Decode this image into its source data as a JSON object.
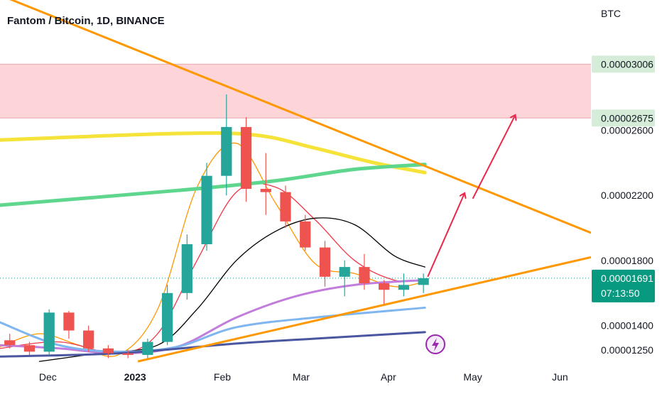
{
  "header": {
    "title": "Fantom / Bitcoin, 1D, BINANCE",
    "currency": "BTC"
  },
  "colors": {
    "up": "#26a69a",
    "down": "#ef5350",
    "ma_fast": "#ff9800",
    "ma_red": "#f23645",
    "ma_black": "#000000",
    "ma_purple": "#c27ddc",
    "ma_blue": "#7fb6f0",
    "ma_navy": "#4a57a0",
    "ma_yellow": "#f5e33a",
    "ma_green": "#5fd68e",
    "trendline": "#ff9800",
    "zone_fill": "#fdd5d8",
    "arrow": "#e8284c",
    "current_price": "#089981"
  },
  "chart_data": {
    "type": "candlestick",
    "title": "Fantom / Bitcoin, 1D, BINANCE",
    "ylabel": "BTC",
    "x_ticks": [
      "Dec",
      "2023",
      "Feb",
      "Mar",
      "Apr",
      "May",
      "Jun"
    ],
    "y_ticks": [
      "0.00002600",
      "0.00002200",
      "0.00001800",
      "0.00001400",
      "0.00001250"
    ],
    "price_labels": {
      "zone_top": "0.00003006",
      "zone_bottom": "0.00002675",
      "current": "0.00001691",
      "countdown": "07:13:50"
    },
    "x_range": [
      "2022-11-14",
      "2023-06-12"
    ],
    "y_range": [
      1.15e-05,
      3.4e-05
    ],
    "resistance_zone": [
      2.675e-05,
      3.006e-05
    ],
    "candles": [
      {
        "date": "2022-11-14",
        "o": 1.31e-05,
        "h": 1.35e-05,
        "l": 1.26e-05,
        "c": 1.28e-05
      },
      {
        "date": "2022-11-21",
        "o": 1.28e-05,
        "h": 1.3e-05,
        "l": 1.22e-05,
        "c": 1.24e-05
      },
      {
        "date": "2022-11-28",
        "o": 1.24e-05,
        "h": 1.5e-05,
        "l": 1.22e-05,
        "c": 1.48e-05
      },
      {
        "date": "2022-12-05",
        "o": 1.48e-05,
        "h": 1.49e-05,
        "l": 1.32e-05,
        "c": 1.37e-05
      },
      {
        "date": "2022-12-12",
        "o": 1.37e-05,
        "h": 1.4e-05,
        "l": 1.24e-05,
        "c": 1.26e-05
      },
      {
        "date": "2022-12-19",
        "o": 1.26e-05,
        "h": 1.28e-05,
        "l": 1.2e-05,
        "c": 1.23e-05
      },
      {
        "date": "2022-12-26",
        "o": 1.23e-05,
        "h": 1.25e-05,
        "l": 1.2e-05,
        "c": 1.22e-05
      },
      {
        "date": "2023-01-02",
        "o": 1.22e-05,
        "h": 1.32e-05,
        "l": 1.2e-05,
        "c": 1.3e-05
      },
      {
        "date": "2023-01-09",
        "o": 1.3e-05,
        "h": 1.65e-05,
        "l": 1.28e-05,
        "c": 1.6e-05
      },
      {
        "date": "2023-01-16",
        "o": 1.6e-05,
        "h": 1.96e-05,
        "l": 1.56e-05,
        "c": 1.9e-05
      },
      {
        "date": "2023-01-23",
        "o": 1.9e-05,
        "h": 2.4e-05,
        "l": 1.86e-05,
        "c": 2.32e-05
      },
      {
        "date": "2023-01-30",
        "o": 2.32e-05,
        "h": 2.82e-05,
        "l": 2.2e-05,
        "c": 2.62e-05
      },
      {
        "date": "2023-02-06",
        "o": 2.62e-05,
        "h": 2.68e-05,
        "l": 2.16e-05,
        "c": 2.24e-05
      },
      {
        "date": "2023-02-13",
        "o": 2.24e-05,
        "h": 2.46e-05,
        "l": 2.08e-05,
        "c": 2.22e-05
      },
      {
        "date": "2023-02-20",
        "o": 2.22e-05,
        "h": 2.26e-05,
        "l": 2e-05,
        "c": 2.04e-05
      },
      {
        "date": "2023-02-27",
        "o": 2.04e-05,
        "h": 2.08e-05,
        "l": 1.86e-05,
        "c": 1.88e-05
      },
      {
        "date": "2023-03-06",
        "o": 1.88e-05,
        "h": 1.92e-05,
        "l": 1.64e-05,
        "c": 1.7e-05
      },
      {
        "date": "2023-03-13",
        "o": 1.7e-05,
        "h": 1.8e-05,
        "l": 1.58e-05,
        "c": 1.76e-05
      },
      {
        "date": "2023-03-20",
        "o": 1.76e-05,
        "h": 1.84e-05,
        "l": 1.62e-05,
        "c": 1.66e-05
      },
      {
        "date": "2023-03-27",
        "o": 1.66e-05,
        "h": 1.68e-05,
        "l": 1.52e-05,
        "c": 1.62e-05
      },
      {
        "date": "2023-04-03",
        "o": 1.62e-05,
        "h": 1.72e-05,
        "l": 1.58e-05,
        "c": 1.65e-05
      },
      {
        "date": "2023-04-10",
        "o": 1.65e-05,
        "h": 1.72e-05,
        "l": 1.6e-05,
        "c": 1.691e-05
      }
    ],
    "moving_averages": [
      {
        "color": "#ff9800",
        "points": [
          [
            "2022-11-14",
            1.27e-05
          ],
          [
            "2022-11-28",
            1.35e-05
          ],
          [
            "2022-12-12",
            1.28e-05
          ],
          [
            "2022-12-26",
            1.22e-05
          ],
          [
            "2023-01-09",
            1.5e-05
          ],
          [
            "2023-01-23",
            2.25e-05
          ],
          [
            "2023-02-06",
            2.52e-05
          ],
          [
            "2023-02-20",
            2.15e-05
          ],
          [
            "2023-03-06",
            1.78e-05
          ],
          [
            "2023-03-20",
            1.72e-05
          ],
          [
            "2023-04-03",
            1.64e-05
          ],
          [
            "2023-04-14",
            1.67e-05
          ]
        ]
      },
      {
        "color": "#f23645",
        "points": [
          [
            "2022-11-14",
            1.26e-05
          ],
          [
            "2022-12-05",
            1.3e-05
          ],
          [
            "2022-12-26",
            1.23e-05
          ],
          [
            "2023-01-09",
            1.35e-05
          ],
          [
            "2023-01-23",
            1.8e-05
          ],
          [
            "2023-02-06",
            2.22e-05
          ],
          [
            "2023-02-20",
            2.25e-05
          ],
          [
            "2023-03-06",
            2.05e-05
          ],
          [
            "2023-03-20",
            1.8e-05
          ],
          [
            "2023-04-03",
            1.68e-05
          ],
          [
            "2023-04-14",
            1.68e-05
          ]
        ]
      },
      {
        "color": "#000000",
        "points": [
          [
            "2022-11-28",
            1.18e-05
          ],
          [
            "2022-12-19",
            1.23e-05
          ],
          [
            "2023-01-09",
            1.28e-05
          ],
          [
            "2023-01-23",
            1.5e-05
          ],
          [
            "2023-02-06",
            1.8e-05
          ],
          [
            "2023-02-20",
            1.98e-05
          ],
          [
            "2023-03-06",
            2.06e-05
          ],
          [
            "2023-03-20",
            2.02e-05
          ],
          [
            "2023-04-03",
            1.83e-05
          ],
          [
            "2023-04-14",
            1.76e-05
          ]
        ]
      },
      {
        "color": "#c27ddc",
        "points": [
          [
            "2022-11-14",
            1.28e-05
          ],
          [
            "2022-12-05",
            1.26e-05
          ],
          [
            "2022-12-26",
            1.23e-05
          ],
          [
            "2023-01-16",
            1.27e-05
          ],
          [
            "2023-02-06",
            1.45e-05
          ],
          [
            "2023-02-27",
            1.58e-05
          ],
          [
            "2023-03-20",
            1.65e-05
          ],
          [
            "2023-04-14",
            1.68e-05
          ]
        ]
      },
      {
        "color": "#7fb6f0",
        "points": [
          [
            "2022-11-14",
            1.42e-05
          ],
          [
            "2022-12-05",
            1.28e-05
          ],
          [
            "2022-12-26",
            1.24e-05
          ],
          [
            "2023-01-16",
            1.27e-05
          ],
          [
            "2023-02-06",
            1.39e-05
          ],
          [
            "2023-03-06",
            1.45e-05
          ],
          [
            "2023-04-14",
            1.51e-05
          ]
        ]
      },
      {
        "color": "#4a57a0",
        "points": [
          [
            "2022-11-14",
            1.21e-05
          ],
          [
            "2022-12-26",
            1.23e-05
          ],
          [
            "2023-02-06",
            1.29e-05
          ],
          [
            "2023-03-06",
            1.32e-05
          ],
          [
            "2023-04-14",
            1.36e-05
          ]
        ]
      },
      {
        "color": "#f5e33a",
        "points": [
          [
            "2022-11-14",
            2.54e-05
          ],
          [
            "2023-01-16",
            2.58e-05
          ],
          [
            "2023-02-13",
            2.57e-05
          ],
          [
            "2023-03-06",
            2.49e-05
          ],
          [
            "2023-03-27",
            2.4e-05
          ],
          [
            "2023-04-14",
            2.34e-05
          ]
        ]
      },
      {
        "color": "#5fd68e",
        "points": [
          [
            "2022-11-14",
            2.14e-05
          ],
          [
            "2023-01-16",
            2.23e-05
          ],
          [
            "2023-02-20",
            2.29e-05
          ],
          [
            "2023-03-20",
            2.36e-05
          ],
          [
            "2023-04-14",
            2.39e-05
          ]
        ]
      }
    ],
    "trendlines": [
      {
        "from": [
          "2022-11-14",
          3.43e-05
        ],
        "to": [
          "2023-06-12",
          1.97e-05
        ]
      },
      {
        "from": [
          "2023-01-02",
          1.18e-05
        ],
        "to": [
          "2023-06-12",
          1.82e-05
        ]
      }
    ],
    "projection": [
      [
        "2023-04-15",
        1.7e-05
      ],
      [
        "2023-04-28",
        2.21e-05
      ],
      [
        "2023-05-01",
        2.18e-05
      ],
      [
        "2023-05-16",
        2.69e-05
      ]
    ]
  }
}
